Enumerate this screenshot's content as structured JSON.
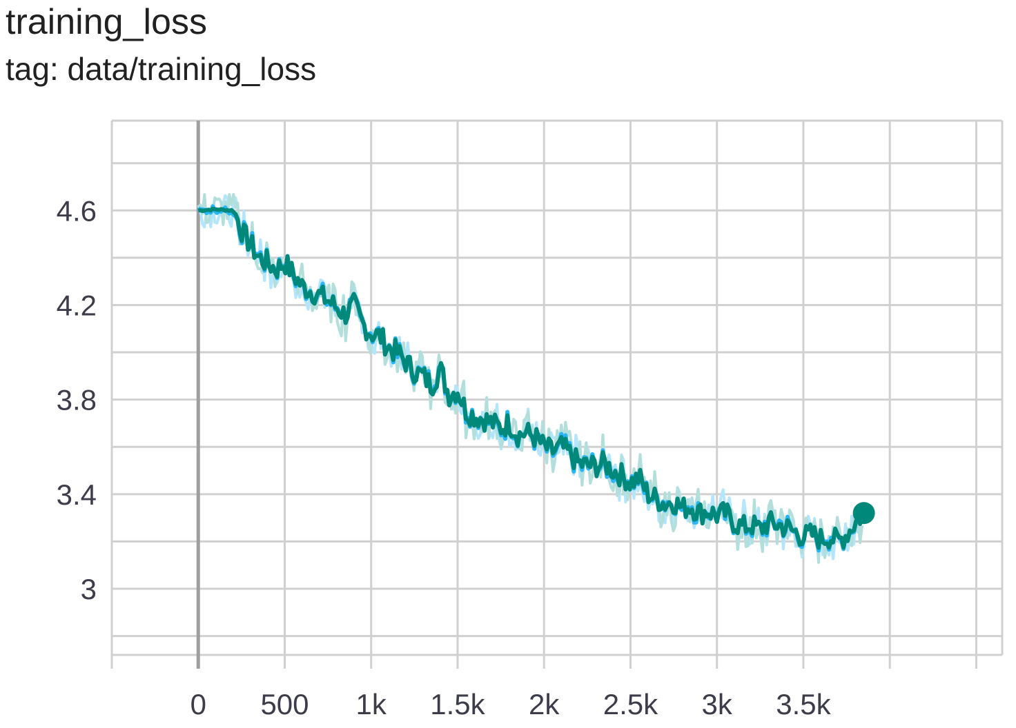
{
  "header": {
    "title": "training_loss",
    "tag": "tag: data/training_loss"
  },
  "chart_data": {
    "type": "line",
    "xlim": [
      -500,
      4650
    ],
    "ylim": [
      2.72,
      4.98
    ],
    "x_ticks": [
      0,
      500,
      1000,
      1500,
      2000,
      2500,
      3000,
      3500
    ],
    "x_tick_labels": [
      "0",
      "500",
      "1k",
      "1.5k",
      "2k",
      "2.5k",
      "3k",
      "3.5k"
    ],
    "y_ticks": [
      3.0,
      3.4,
      3.8,
      4.2,
      4.6
    ],
    "y_tick_labels": [
      "3",
      "3.4",
      "3.8",
      "4.2",
      "4.6"
    ],
    "y_minor_grid": [
      2.8,
      3.2,
      3.6,
      4.0,
      4.4,
      4.8
    ],
    "grid": true,
    "colors": {
      "smoothed_primary": "#00897b",
      "smoothed_secondary": "#29b6f6",
      "raw_primary": "#b2dfdb",
      "raw_secondary": "#b3e5fc",
      "grid": "#d0d0d0",
      "zero_line": "#9e9e9e"
    },
    "series": [
      {
        "x": [
          0,
          100,
          200,
          220,
          260,
          300,
          350,
          400,
          450,
          500,
          550,
          600,
          650,
          700,
          750,
          800,
          850,
          900,
          950,
          1000,
          1050,
          1100,
          1150,
          1200,
          1250,
          1300,
          1350,
          1400,
          1450,
          1500,
          1550,
          1600,
          1650,
          1700,
          1750,
          1800,
          1850,
          1900,
          1950,
          2000,
          2050,
          2100,
          2150,
          2200,
          2250,
          2300,
          2350,
          2400,
          2450,
          2500,
          2550,
          2600,
          2650,
          2700,
          2750,
          2800,
          2850,
          2900,
          2950,
          3000,
          3050,
          3100,
          3150,
          3200,
          3250,
          3300,
          3350,
          3400,
          3450,
          3500,
          3550,
          3600,
          3650,
          3700,
          3750,
          3800,
          3850
        ],
        "y": [
          4.6,
          4.605,
          4.6,
          4.58,
          4.5,
          4.46,
          4.4,
          4.38,
          4.35,
          4.38,
          4.33,
          4.28,
          4.26,
          4.24,
          4.22,
          4.19,
          4.16,
          4.2,
          4.12,
          4.08,
          4.07,
          4.02,
          4.0,
          3.96,
          3.92,
          3.9,
          3.86,
          3.93,
          3.82,
          3.84,
          3.75,
          3.73,
          3.72,
          3.7,
          3.68,
          3.7,
          3.65,
          3.66,
          3.64,
          3.6,
          3.58,
          3.6,
          3.57,
          3.53,
          3.52,
          3.52,
          3.53,
          3.5,
          3.48,
          3.45,
          3.47,
          3.4,
          3.38,
          3.36,
          3.37,
          3.34,
          3.35,
          3.32,
          3.33,
          3.31,
          3.32,
          3.28,
          3.26,
          3.27,
          3.25,
          3.28,
          3.27,
          3.26,
          3.24,
          3.22,
          3.23,
          3.21,
          3.22,
          3.2,
          3.23,
          3.28,
          3.32
        ]
      }
    ]
  }
}
